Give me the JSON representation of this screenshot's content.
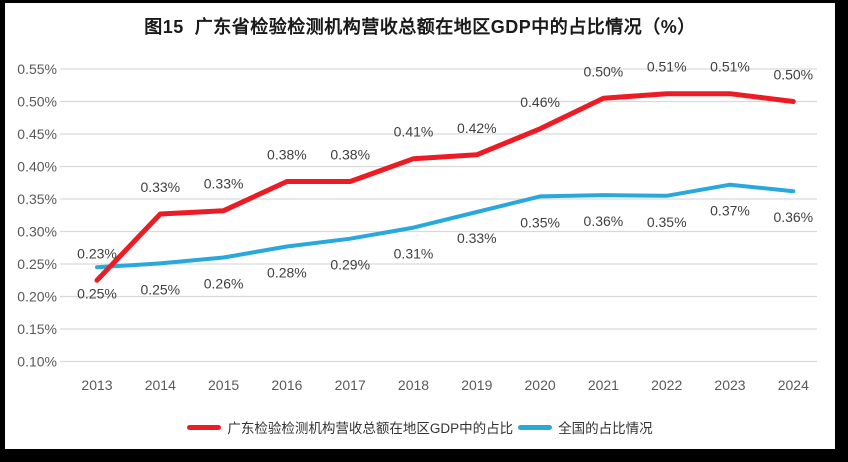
{
  "chart_data": {
    "type": "line",
    "title": "图15  广东省检验检测机构营收总额在地区GDP中的占比情况（%）",
    "categories": [
      "2013",
      "2014",
      "2015",
      "2016",
      "2017",
      "2018",
      "2019",
      "2020",
      "2021",
      "2022",
      "2023",
      "2024"
    ],
    "y_axis": {
      "min": 0.1,
      "max": 0.55,
      "step": 0.05,
      "tick_labels": [
        "0.55%",
        "0.50%",
        "0.45%",
        "0.40%",
        "0.35%",
        "0.30%",
        "0.25%",
        "0.20%",
        "0.15%",
        "0.10%"
      ],
      "unit": "%"
    },
    "series": [
      {
        "id": "guangdong-gdp-share",
        "name": "广东检验检测机构营收总额在地区GDP中的占比",
        "color": "#ED1C24",
        "stroke_width": 5,
        "label_position": "above",
        "values": [
          0.225,
          0.327,
          0.332,
          0.377,
          0.377,
          0.412,
          0.418,
          0.458,
          0.505,
          0.512,
          0.512,
          0.5
        ],
        "labels": [
          "0.23%",
          "0.33%",
          "0.33%",
          "0.38%",
          "0.38%",
          "0.41%",
          "0.42%",
          "0.46%",
          "0.50%",
          "0.51%",
          "0.51%",
          "0.50%"
        ]
      },
      {
        "id": "national-share",
        "name": "全国的占比情况",
        "color": "#29A8DC",
        "stroke_width": 4,
        "label_position": "below",
        "values": [
          0.245,
          0.251,
          0.26,
          0.277,
          0.289,
          0.306,
          0.33,
          0.354,
          0.356,
          0.355,
          0.372,
          0.362
        ],
        "labels": [
          "0.25%",
          "0.25%",
          "0.26%",
          "0.28%",
          "0.29%",
          "0.31%",
          "0.33%",
          "0.35%",
          "0.36%",
          "0.35%",
          "0.37%",
          "0.36%"
        ]
      }
    ],
    "legend_position": "bottom",
    "grid": "horizontal",
    "colors": {
      "gridline": "#D9D9D9",
      "axis_text": "#595959",
      "data_label_text": "#3F3F3F",
      "background": "#FFFFFF",
      "frame": "#000000"
    }
  }
}
